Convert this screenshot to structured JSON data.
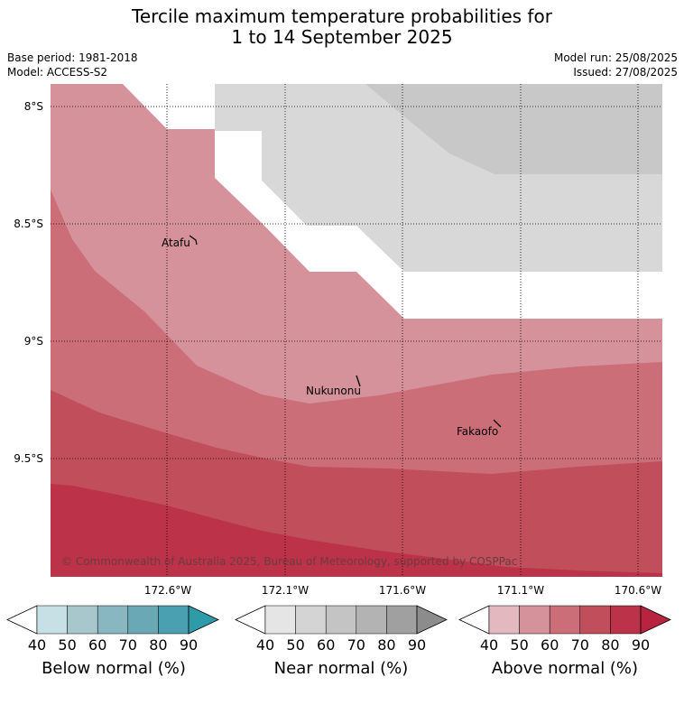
{
  "header": {
    "title_line1": "Tercile maximum temperature probabilities for",
    "title_line2": "1 to 14 September 2025",
    "base_period": "Base period: 1981-2018",
    "model": "Model: ACCESS-S2",
    "model_run": "Model run: 25/08/2025",
    "issued": "Issued: 27/08/2025"
  },
  "map": {
    "lat_labels": [
      "8°S",
      "8.5°S",
      "9°S",
      "9.5°S"
    ],
    "lon_labels": [
      "172.6°W",
      "172.1°W",
      "171.6°W",
      "171.1°W",
      "170.6°W"
    ],
    "places": [
      "Atafu",
      "Nukunonu",
      "Fakaofo"
    ],
    "copyright": "© Commonwealth of Australia 2025, Bureau of Meteorology, supported by COSPPac"
  },
  "colorbars": [
    {
      "name": "Below normal (%)",
      "ticks": [
        "40",
        "50",
        "60",
        "70",
        "80",
        "90"
      ],
      "colors": [
        "#c7e0e6",
        "#a8c7cd",
        "#88b7c2",
        "#6aa8b5",
        "#4a9fb0",
        "#2f9aa8"
      ]
    },
    {
      "name": "Near normal (%)",
      "ticks": [
        "40",
        "50",
        "60",
        "70",
        "80",
        "90"
      ],
      "colors": [
        "#e5e5e5",
        "#d4d4d4",
        "#c4c4c4",
        "#b3b3b3",
        "#a0a0a0",
        "#8c8c8c"
      ]
    },
    {
      "name": "Above normal (%)",
      "ticks": [
        "40",
        "50",
        "60",
        "70",
        "80",
        "90"
      ],
      "colors": [
        "#e3b8be",
        "#d6929b",
        "#cb6e78",
        "#c04e5b",
        "#bb3249",
        "#b8243f"
      ]
    }
  ]
}
